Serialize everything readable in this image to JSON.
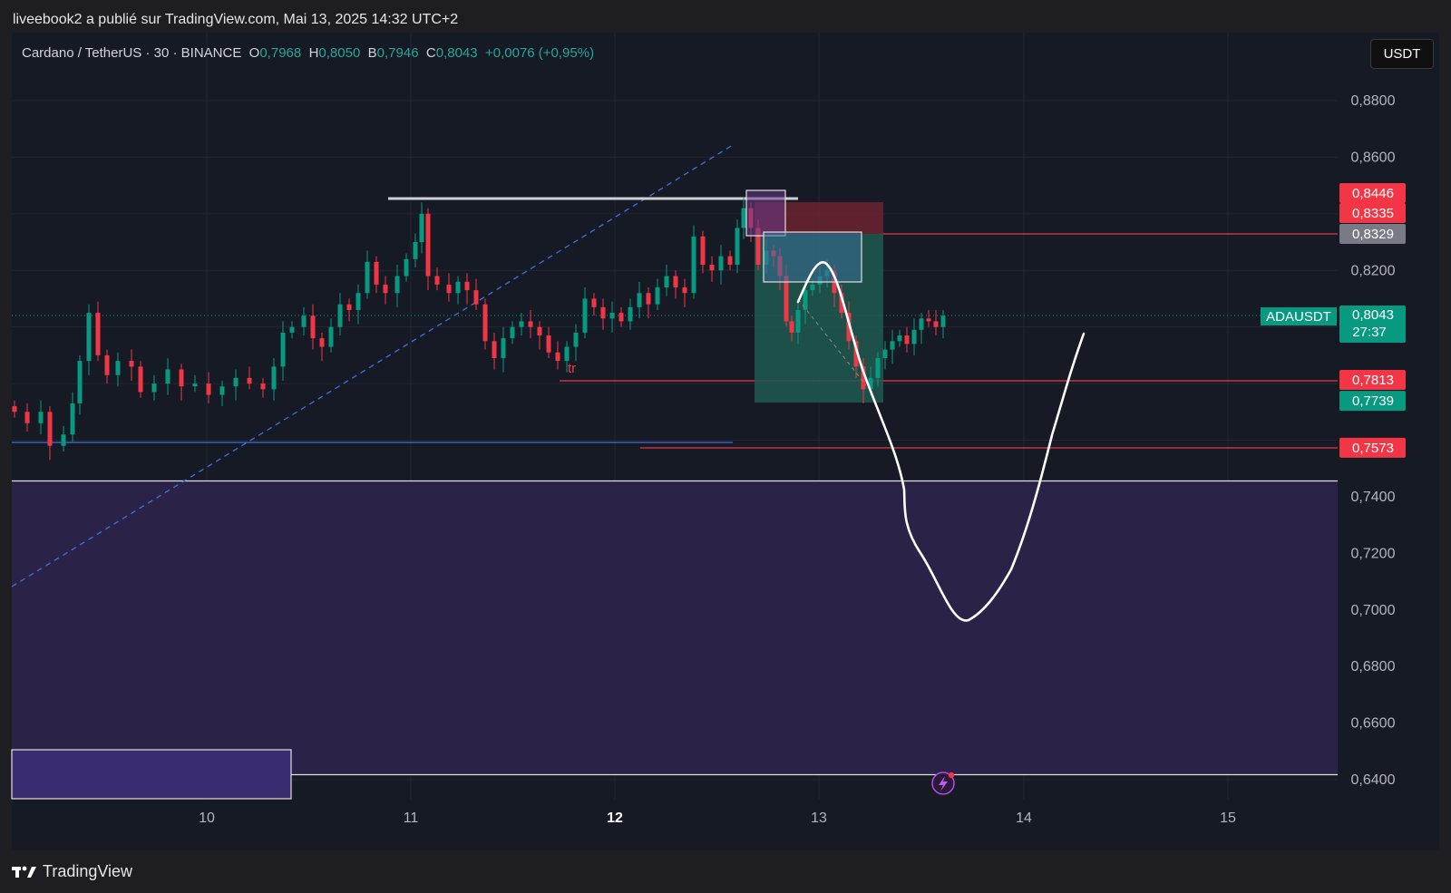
{
  "header": {
    "published_by": "liveebook2 a publié sur TradingView.com, Mai 13, 2025 14:32 UTC+2"
  },
  "legend": {
    "symbol": "Cardano / TetherUS · 30 · BINANCE",
    "o_label": "O",
    "o_value": "0,7968",
    "h_label": "H",
    "h_value": "0,8050",
    "b_label": "B",
    "b_value": "0,7946",
    "c_label": "C",
    "c_value": "0,8043",
    "change": "+0,0076 (+0,95%)"
  },
  "currency_button": "USDT",
  "price_axis": {
    "ticks": [
      "0,8800",
      "0,8600",
      "0,8200",
      "0,7400",
      "0,7200",
      "0,7000",
      "0,6800",
      "0,6600",
      "0,6400"
    ]
  },
  "time_axis": {
    "ticks": [
      "10",
      "11",
      "12",
      "13",
      "14",
      "15"
    ],
    "bold_tick": "12"
  },
  "price_labels": [
    {
      "text": "0,8446",
      "color": "#f23645"
    },
    {
      "text": "0,8335",
      "color": "#f23645"
    },
    {
      "text": "0,8329",
      "color": "#787b86"
    },
    {
      "text": "0,7813",
      "color": "#f23645"
    },
    {
      "text": "0,7739",
      "color": "#089981"
    },
    {
      "text": "0,7573",
      "color": "#f23645"
    }
  ],
  "current_price": {
    "symbol": "ADAUSDT",
    "price": "0,8043",
    "countdown": "27:37",
    "color": "#089981"
  },
  "annotation_text": "tr",
  "footer": {
    "brand": "TradingView"
  },
  "colors": {
    "up": "#089981",
    "down": "#f23645",
    "background": "#161a25",
    "zone": "#2a2347"
  }
}
